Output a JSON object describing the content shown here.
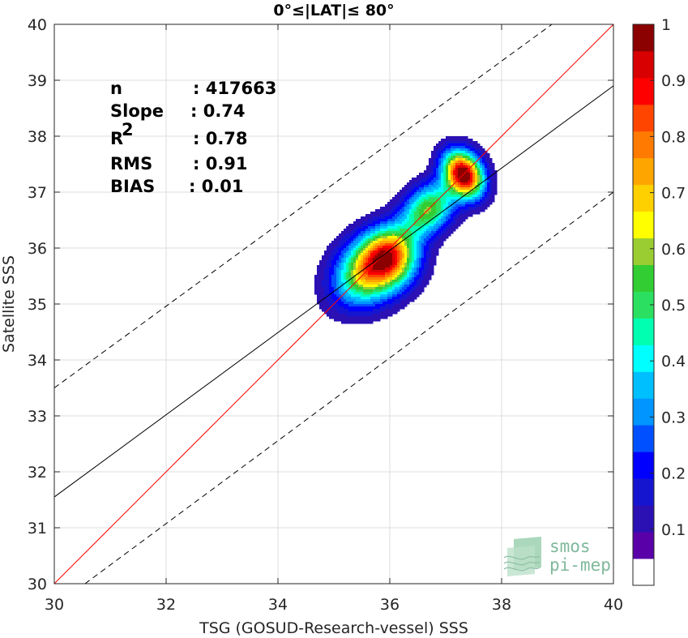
{
  "chart_data": {
    "type": "contour-scatter",
    "title": "0°≤|LAT|≤ 80°",
    "xlabel": "TSG (GOSUD-Research-vessel) SSS",
    "ylabel": "Satellite SSS",
    "xlim": [
      30,
      40
    ],
    "ylim": [
      30,
      40
    ],
    "xticks": [
      30,
      32,
      34,
      36,
      38,
      40
    ],
    "yticks": [
      30,
      31,
      32,
      33,
      34,
      35,
      36,
      37,
      38,
      39,
      40
    ],
    "grid": true,
    "stats": [
      {
        "label": "n",
        "sep": ": ",
        "value": "417663"
      },
      {
        "label": "Slope",
        "sep": ": ",
        "value": "0.74"
      },
      {
        "label": "R",
        "sup": "2",
        "sep": ": ",
        "value": "0.78"
      },
      {
        "label": "RMS",
        "sep": ": ",
        "value": "0.91"
      },
      {
        "label": "BIAS",
        "sep": ": ",
        "value": "0.01"
      }
    ],
    "lines": [
      {
        "name": "one-to-one",
        "color": "#ff0000",
        "style": "solid",
        "points": [
          [
            30,
            30
          ],
          [
            40,
            40
          ]
        ]
      },
      {
        "name": "regression",
        "color": "#000000",
        "style": "solid",
        "points": [
          [
            30,
            31.55
          ],
          [
            40,
            38.9
          ]
        ]
      },
      {
        "name": "upper-bound",
        "color": "#000000",
        "style": "dashed",
        "points": [
          [
            30,
            33.5
          ],
          [
            38.9,
            40
          ]
        ]
      },
      {
        "name": "lower-bound",
        "color": "#000000",
        "style": "dashed",
        "points": [
          [
            30.55,
            30
          ],
          [
            40,
            37.0
          ]
        ]
      }
    ],
    "density_blobs": [
      {
        "cx": 35.6,
        "cy": 35.55,
        "sx": 0.45,
        "sy": 0.38,
        "w": 0.55,
        "rot": 40
      },
      {
        "cx": 36.0,
        "cy": 35.85,
        "sx": 0.35,
        "sy": 0.35,
        "w": 0.6,
        "rot": 40
      },
      {
        "cx": 36.7,
        "cy": 36.7,
        "sx": 0.35,
        "sy": 0.28,
        "w": 0.45,
        "rot": 45
      },
      {
        "cx": 37.32,
        "cy": 37.32,
        "sx": 0.22,
        "sy": 0.3,
        "w": 1.0,
        "rot": 30
      },
      {
        "cx": 36.3,
        "cy": 36.3,
        "sx": 1.0,
        "sy": 0.25,
        "w": 0.12,
        "rot": 45
      }
    ],
    "contour_levels": [
      0.05,
      0.1,
      0.15,
      0.2,
      0.25,
      0.3,
      0.35,
      0.4,
      0.45,
      0.5,
      0.55,
      0.6,
      0.65,
      0.7,
      0.75,
      0.8,
      0.85,
      0.9,
      0.95
    ],
    "colorbar": {
      "ticks": [
        "0.1",
        "0.2",
        "0.3",
        "0.4",
        "0.5",
        "0.6",
        "0.7",
        "0.8",
        "0.9",
        "1"
      ],
      "colors": [
        "#ffffff",
        "#5a00a8",
        "#2b10b4",
        "#1515d0",
        "#0000ff",
        "#0050ff",
        "#0095ff",
        "#00bfff",
        "#00ffff",
        "#00ffb0",
        "#2be060",
        "#32cd32",
        "#9acd32",
        "#ffff00",
        "#ffd000",
        "#ffa500",
        "#ff7a00",
        "#ff4500",
        "#ff0000",
        "#d80000",
        "#8b0000"
      ]
    }
  },
  "logo": {
    "line1": "smos",
    "line2": "pi-mep"
  }
}
